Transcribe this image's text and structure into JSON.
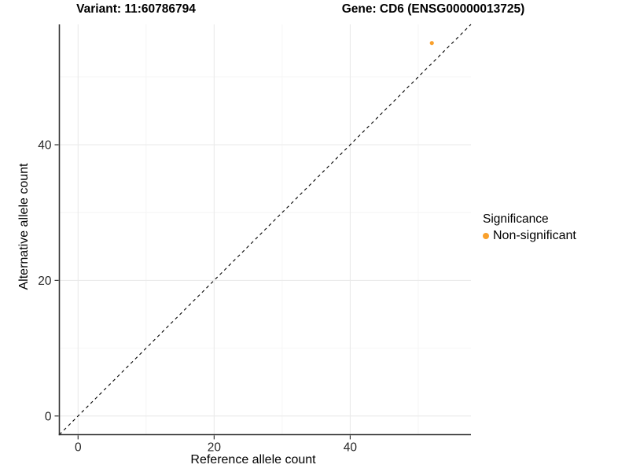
{
  "chart_data": {
    "type": "scatter",
    "titles": {
      "variant": "Variant: 11:60786794",
      "gene": "Gene: CD6 (ENSG00000013725)"
    },
    "xlabel": "Reference allele count",
    "ylabel": "Alternative allele count",
    "xlim": [
      -2.75,
      57.75
    ],
    "ylim": [
      -2.75,
      57.75
    ],
    "x_ticks": [
      0,
      20,
      40
    ],
    "y_ticks": [
      0,
      20,
      40
    ],
    "x_minor_ticks": [
      10,
      30,
      50
    ],
    "y_minor_ticks": [
      10,
      30,
      50
    ],
    "grid": true,
    "identity_line": {
      "show": true,
      "style": "dashed",
      "color": "#000000"
    },
    "legend": {
      "title": "Significance",
      "position": "right"
    },
    "series": [
      {
        "name": "Non-significant",
        "color": "#F9A02C",
        "points": [
          {
            "x": 52,
            "y": 55
          }
        ]
      }
    ],
    "colors": {
      "background": "#FFFFFF",
      "grid_major": "#EAEAEA",
      "grid_minor": "#F4F4F4",
      "axis_line": "#333333",
      "tick_label": "#262626",
      "point": "#F9A02C"
    }
  }
}
